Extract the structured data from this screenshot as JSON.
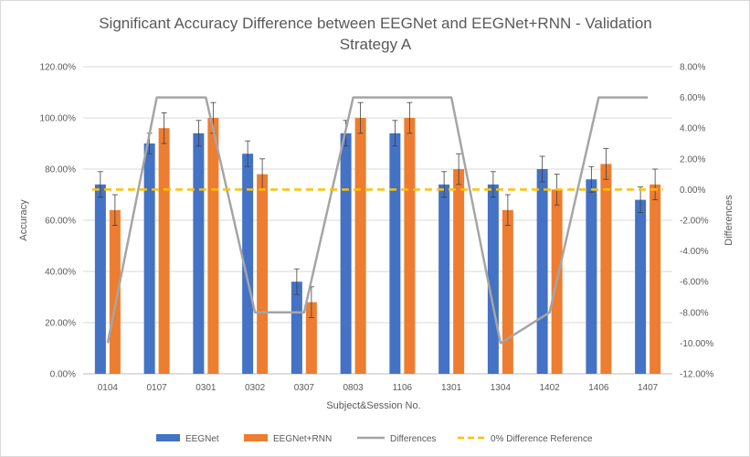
{
  "chart_data": {
    "type": "bar",
    "title_lines": [
      "Significant Accuracy Difference between EEGNet and EEGNet+RNN - Validation",
      "Strategy A"
    ],
    "xlabel": "Subject&Session No.",
    "ylabel": "Accuracy",
    "y2label": "Differences",
    "categories": [
      "0104",
      "0107",
      "0301",
      "0302",
      "0307",
      "0803",
      "1106",
      "1301",
      "1304",
      "1402",
      "1406",
      "1407"
    ],
    "y_ticks": [
      "0.00%",
      "20.00%",
      "40.00%",
      "60.00%",
      "80.00%",
      "100.00%",
      "120.00%"
    ],
    "y2_ticks": [
      "-12.00%",
      "-10.00%",
      "-8.00%",
      "-6.00%",
      "-4.00%",
      "-2.00%",
      "0.00%",
      "2.00%",
      "4.00%",
      "6.00%",
      "8.00%"
    ],
    "ylim": [
      0,
      120
    ],
    "y2lim": [
      -12,
      8
    ],
    "grid": true,
    "legend_position": "bottom",
    "series": [
      {
        "name": "EEGNet",
        "kind": "bar",
        "axis": "left",
        "color": "#4472c4",
        "values": [
          74,
          90,
          94,
          86,
          36,
          94,
          94,
          74,
          74,
          80,
          76,
          68
        ],
        "errors": [
          5,
          4,
          5,
          5,
          5,
          5,
          5,
          5,
          5,
          5,
          5,
          5
        ]
      },
      {
        "name": "EEGNet+RNN",
        "kind": "bar",
        "axis": "left",
        "color": "#ed7d31",
        "values": [
          64,
          96,
          100,
          78,
          28,
          100,
          100,
          80,
          64,
          72,
          82,
          74
        ],
        "errors": [
          6,
          6,
          6,
          6,
          6,
          6,
          6,
          6,
          6,
          6,
          6,
          6
        ]
      },
      {
        "name": "Differences",
        "kind": "line",
        "axis": "right",
        "color": "#a5a5a5",
        "values": [
          -10,
          6,
          6,
          -8,
          -8,
          6,
          6,
          6,
          -10,
          -8,
          6,
          6
        ]
      },
      {
        "name": "0% Difference Reference",
        "kind": "dashed-line",
        "axis": "right",
        "color": "#ffc000",
        "values": [
          0,
          0,
          0,
          0,
          0,
          0,
          0,
          0,
          0,
          0,
          0,
          0
        ]
      }
    ]
  }
}
